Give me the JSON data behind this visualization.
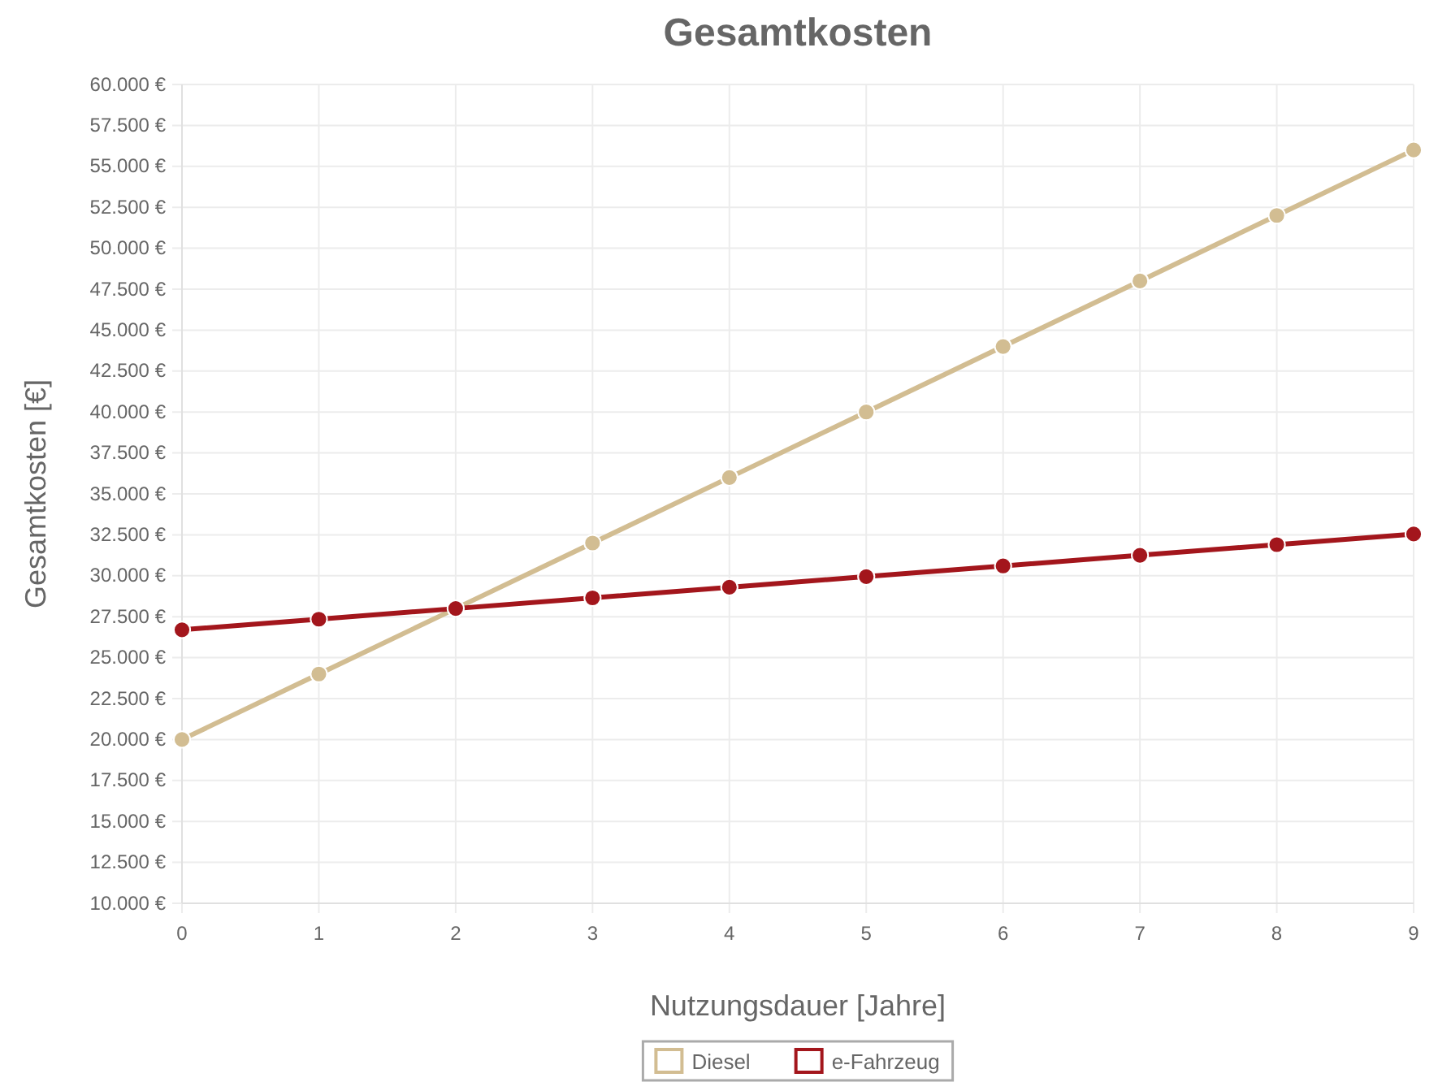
{
  "chart_data": {
    "type": "line",
    "title": "Gesamtkosten",
    "xlabel": "Nutzungsdauer [Jahre]",
    "ylabel": "Gesamtkosten [€]",
    "x": [
      0,
      1,
      2,
      3,
      4,
      5,
      6,
      7,
      8,
      9
    ],
    "series": [
      {
        "name": "Diesel",
        "color": "#d2bd92",
        "values": [
          20000,
          24000,
          28000,
          32000,
          36000,
          40000,
          44000,
          48000,
          52000,
          56000
        ]
      },
      {
        "name": "e-Fahrzeug",
        "color": "#a3161c",
        "values": [
          26700,
          27350,
          28000,
          28650,
          29300,
          29950,
          30600,
          31250,
          31900,
          32550
        ]
      }
    ],
    "xlim": [
      0,
      9
    ],
    "xticks": [
      0,
      1,
      2,
      3,
      4,
      5,
      6,
      7,
      8,
      9
    ],
    "ylim": [
      10000,
      60000
    ],
    "yticks": [
      {
        "value": 10000,
        "label": "10.000 €"
      },
      {
        "value": 12500,
        "label": "12.500 €"
      },
      {
        "value": 15000,
        "label": "15.000 €"
      },
      {
        "value": 17500,
        "label": "17.500 €"
      },
      {
        "value": 20000,
        "label": "20.000 €"
      },
      {
        "value": 22500,
        "label": "22.500 €"
      },
      {
        "value": 25000,
        "label": "25.000 €"
      },
      {
        "value": 27500,
        "label": "27.500 €"
      },
      {
        "value": 30000,
        "label": "30.000 €"
      },
      {
        "value": 32500,
        "label": "32.500 €"
      },
      {
        "value": 35000,
        "label": "35.000 €"
      },
      {
        "value": 37500,
        "label": "37.500 €"
      },
      {
        "value": 40000,
        "label": "40.000 €"
      },
      {
        "value": 42500,
        "label": "42.500 €"
      },
      {
        "value": 45000,
        "label": "45.000 €"
      },
      {
        "value": 47500,
        "label": "47.500 €"
      },
      {
        "value": 50000,
        "label": "50.000 €"
      },
      {
        "value": 52500,
        "label": "52.500 €"
      },
      {
        "value": 55000,
        "label": "55.000 €"
      },
      {
        "value": 57500,
        "label": "57.500 €"
      },
      {
        "value": 60000,
        "label": "60.000 €"
      }
    ],
    "grid": true,
    "legend": "bottom",
    "marker": "circle",
    "line_style": "solid"
  }
}
